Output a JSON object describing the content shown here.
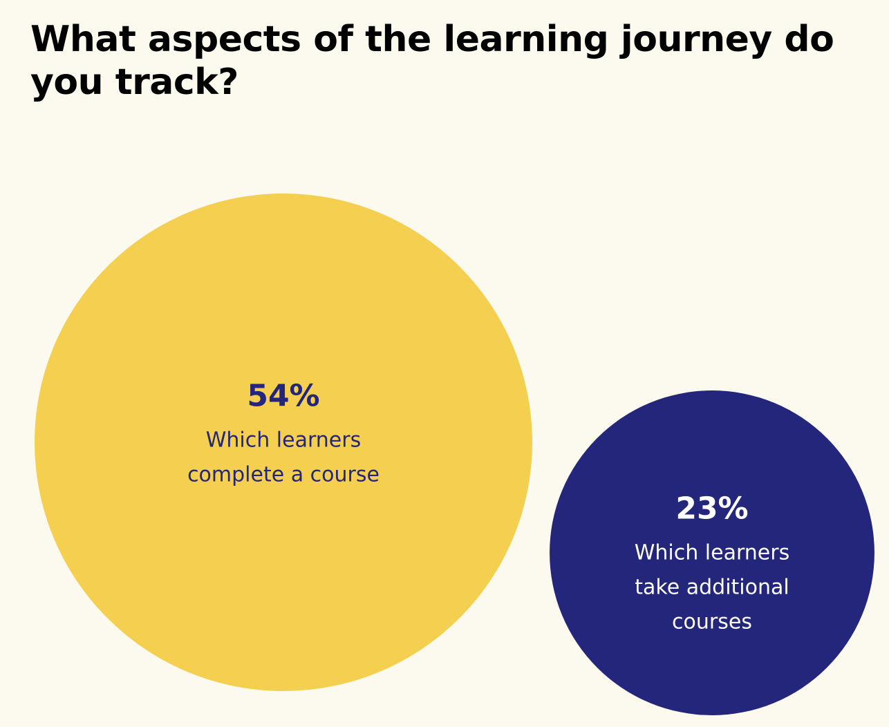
{
  "chart_data": {
    "type": "bubble",
    "title": "What aspects of the learning journey do you track?",
    "categories": [
      "Which learners complete a course",
      "Which learners take additional courses"
    ],
    "values": [
      54,
      23
    ],
    "value_labels": [
      "54%",
      "23%"
    ],
    "colors": [
      "#f5cf4f",
      "#23267a"
    ]
  }
}
